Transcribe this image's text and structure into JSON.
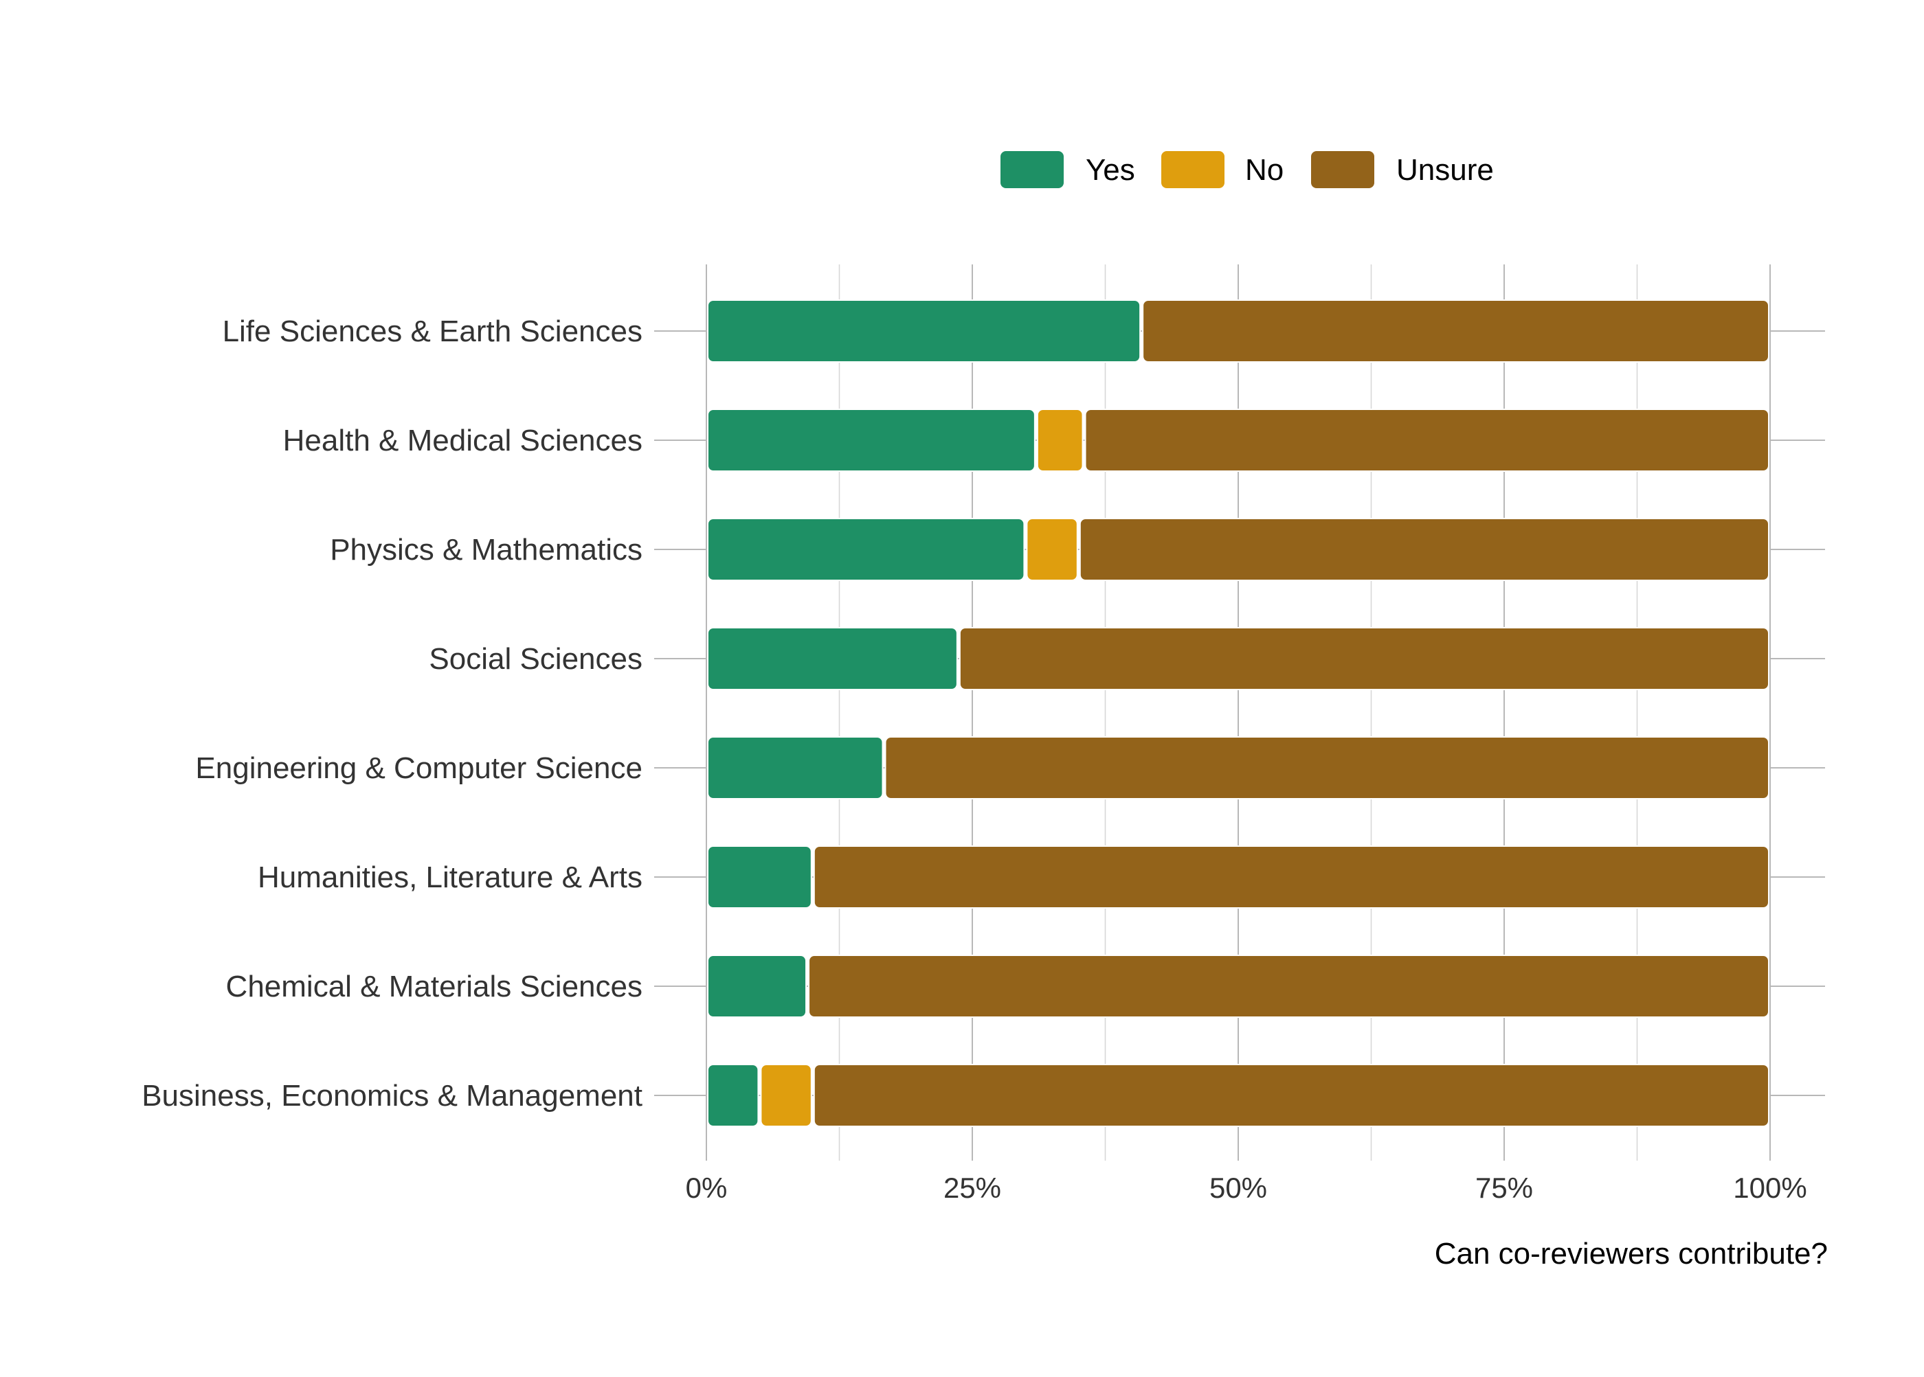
{
  "chart_data": {
    "type": "bar",
    "orientation": "horizontal",
    "stacked": true,
    "categories": [
      "Life Sciences & Earth Sciences",
      "Health & Medical Sciences",
      "Physics & Mathematics",
      "Social Sciences",
      "Engineering & Computer Science",
      "Humanities, Literature & Arts",
      "Chemical & Materials Sciences",
      "Business, Economics & Management"
    ],
    "series": [
      {
        "name": "Yes",
        "color": "#1e9065",
        "values": [
          40.9,
          31.0,
          30.0,
          23.7,
          16.7,
          10.0,
          9.5,
          5.0
        ]
      },
      {
        "name": "No",
        "color": "#df9e0e",
        "values": [
          0,
          4.5,
          5.0,
          0,
          0,
          0,
          0,
          5.0
        ]
      },
      {
        "name": "Unsure",
        "color": "#93631a",
        "values": [
          59.1,
          64.5,
          65.0,
          76.3,
          83.3,
          90.0,
          90.5,
          90.0
        ]
      }
    ],
    "xlim": [
      0,
      100
    ],
    "xticks": [
      0,
      25,
      50,
      75,
      100
    ],
    "xtick_labels": [
      "0%",
      "25%",
      "50%",
      "75%",
      "100%"
    ],
    "xlabel": "Can co-reviewers contribute?",
    "ylabel": "",
    "legend_position": "top",
    "grid": true
  }
}
